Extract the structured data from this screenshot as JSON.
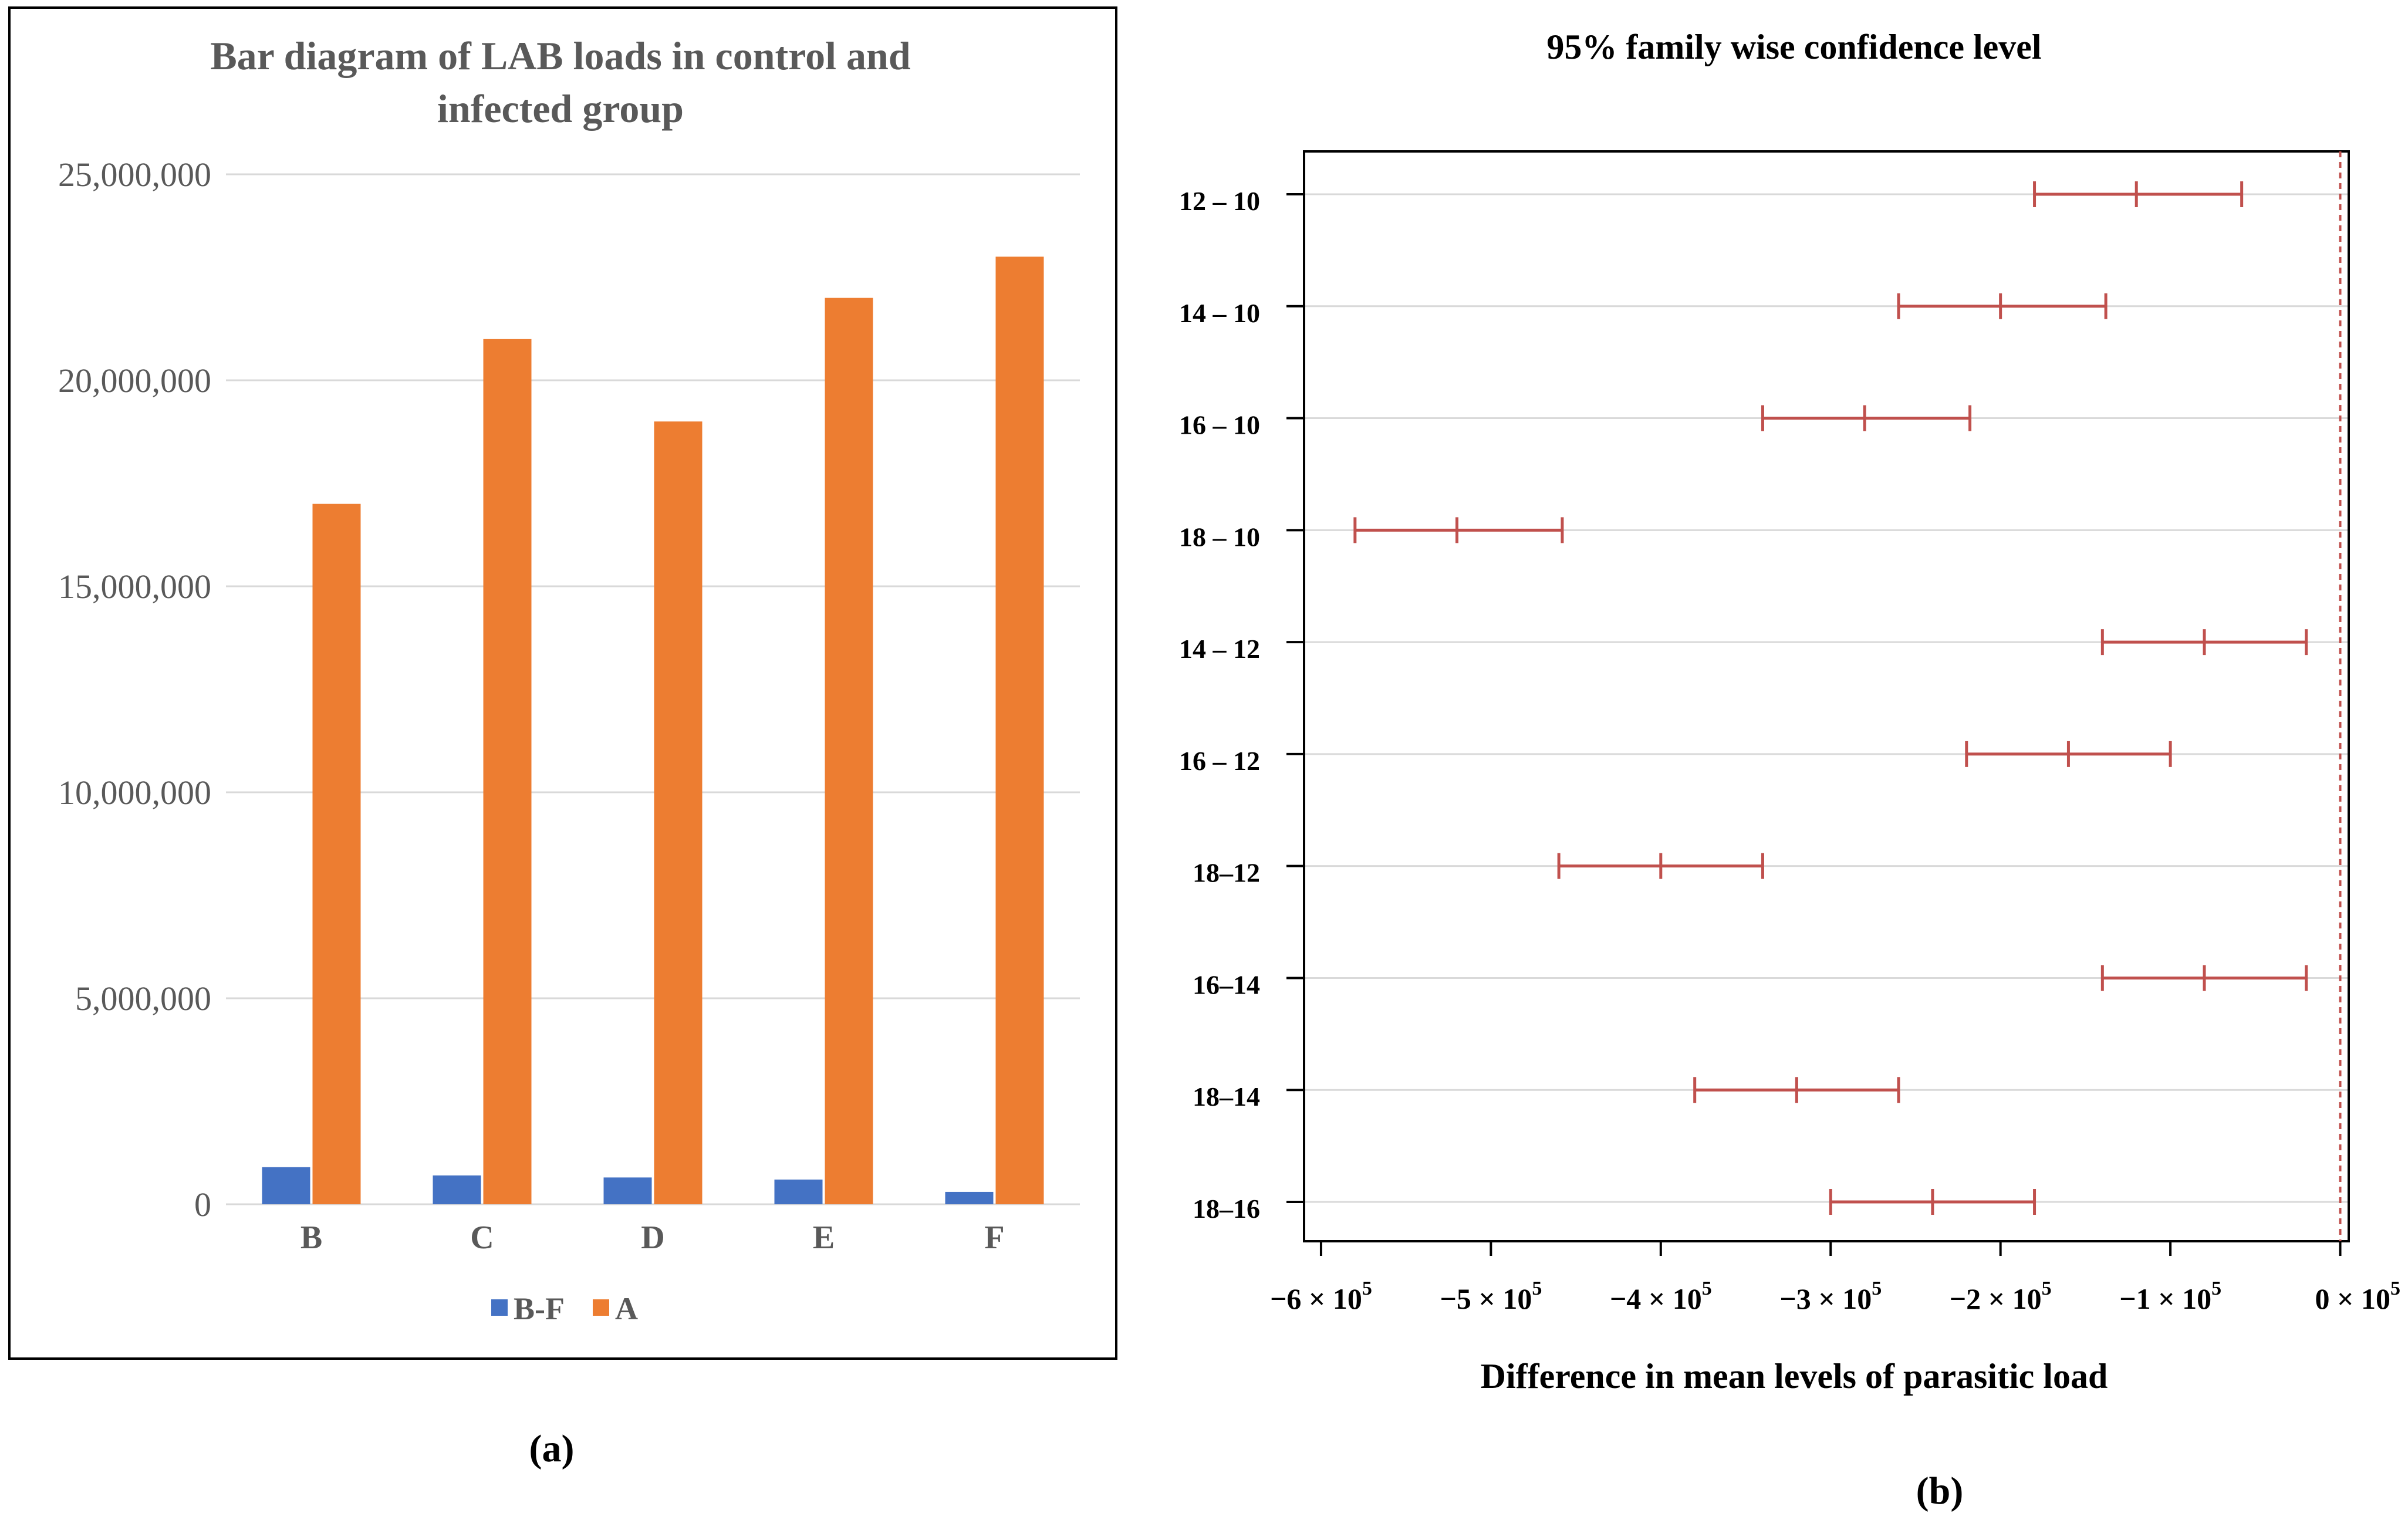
{
  "colors": {
    "blue": "#4472C4",
    "orange": "#ED7D31",
    "title_gray": "#595959",
    "grid": "#D9D9D9",
    "ci": "#C0504D",
    "frame": "#000000"
  },
  "panel_a_label": "(a)",
  "panel_b_label": "(b)",
  "chart_data": [
    {
      "type": "bar",
      "title": "Bar diagram of LAB loads in control and infected group",
      "title_lines": [
        "Bar diagram of LAB loads in control and",
        "infected group"
      ],
      "categories": [
        "B",
        "C",
        "D",
        "E",
        "F"
      ],
      "series": [
        {
          "name": "B-F",
          "values": [
            900000,
            700000,
            650000,
            600000,
            300000
          ]
        },
        {
          "name": "A",
          "values": [
            17000000,
            21000000,
            19000000,
            22000000,
            23000000
          ]
        }
      ],
      "ylim": [
        0,
        25000000
      ],
      "yticks": [
        0,
        5000000,
        10000000,
        15000000,
        20000000,
        25000000
      ],
      "ytick_labels": [
        "0",
        "5,000,000",
        "10,000,000",
        "15,000,000",
        "20,000,000",
        "25,000,000"
      ],
      "legend_position": "bottom",
      "grid": true
    },
    {
      "type": "interval",
      "title": "95% family wise confidence level",
      "xlabel": "Difference in mean  levels of parasitic load",
      "xlim": [
        -610000,
        5000
      ],
      "xticks": [
        -600000,
        -500000,
        -400000,
        -300000,
        -200000,
        -100000,
        0
      ],
      "xtick_mantissas": [
        "−6 × 10",
        "−5 × 10",
        "−4 × 10",
        "−3 × 10",
        "−2 × 10",
        "−1 × 10",
        "0 × 10"
      ],
      "xtick_exponent": "5",
      "reference_line": 0,
      "comparisons": [
        {
          "label": "12 – 10",
          "lwr": -180000,
          "diff": -120000,
          "upr": -58000
        },
        {
          "label": "14 – 10",
          "lwr": -260000,
          "diff": -200000,
          "upr": -138000
        },
        {
          "label": "16 – 10",
          "lwr": -340000,
          "diff": -280000,
          "upr": -218000
        },
        {
          "label": "18 – 10",
          "lwr": -580000,
          "diff": -520000,
          "upr": -458000
        },
        {
          "label": "14 – 12",
          "lwr": -140000,
          "diff": -80000,
          "upr": -20000
        },
        {
          "label": "16 – 12",
          "lwr": -220000,
          "diff": -160000,
          "upr": -100000
        },
        {
          "label": "18–12",
          "lwr": -460000,
          "diff": -400000,
          "upr": -340000
        },
        {
          "label": "16–14",
          "lwr": -140000,
          "diff": -80000,
          "upr": -20000
        },
        {
          "label": "18–14",
          "lwr": -380000,
          "diff": -320000,
          "upr": -260000
        },
        {
          "label": "18–16",
          "lwr": -300000,
          "diff": -240000,
          "upr": -180000
        }
      ],
      "grid": true
    }
  ]
}
